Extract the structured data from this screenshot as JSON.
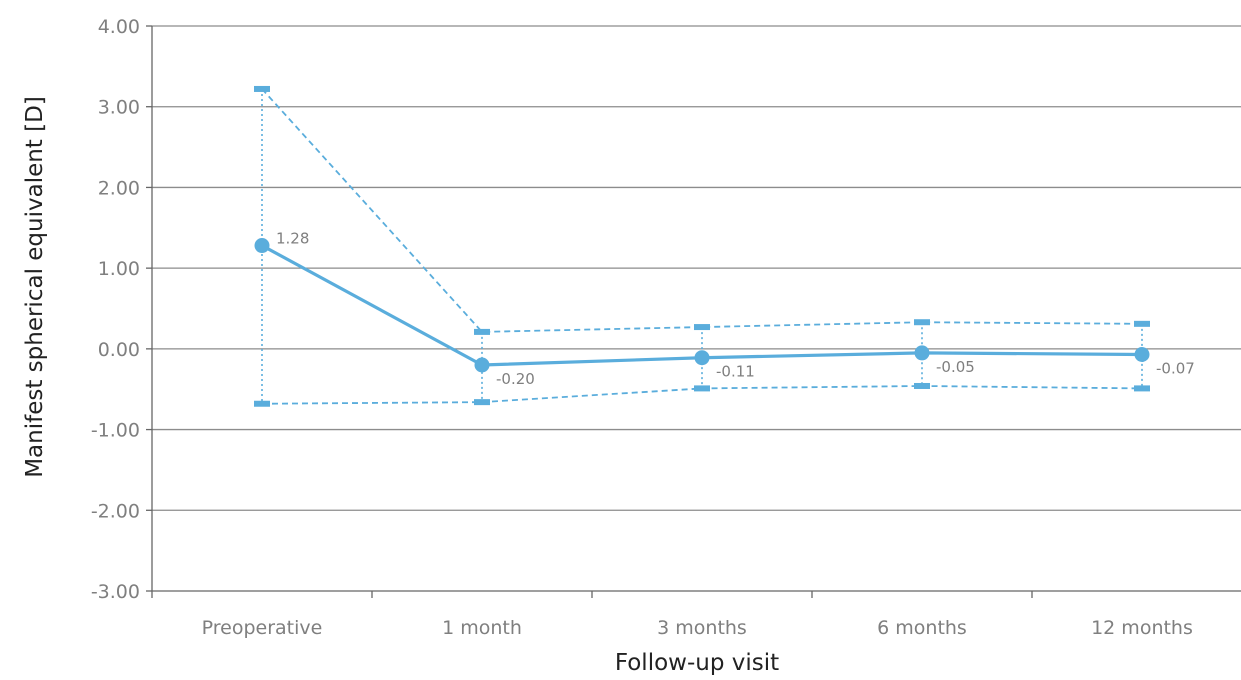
{
  "chart_data": {
    "type": "line",
    "title": "",
    "xlabel": "Follow-up visit",
    "ylabel": "Manifest spherical equivalent [D]",
    "categories": [
      "Preoperative",
      "1 month",
      "3 months",
      "6 months",
      "12 months"
    ],
    "ylim": [
      -3,
      4
    ],
    "yticks": [
      "4.00",
      "3.00",
      "2.00",
      "1.00",
      "0.00",
      "-1.00",
      "-2.00",
      "-3.00"
    ],
    "grid": true,
    "legend": "none",
    "series": [
      {
        "values": [
          1.28,
          -0.2,
          -0.11,
          -0.05,
          -0.07
        ],
        "labels": [
          "1.28",
          "-0.20",
          "-0.11",
          "-0.05",
          "-0.07"
        ],
        "upper": [
          3.22,
          0.21,
          0.27,
          0.33,
          0.31
        ],
        "lower": [
          -0.68,
          -0.66,
          -0.49,
          -0.46,
          -0.49
        ]
      }
    ],
    "colors": {
      "series": "#5aaddc",
      "grid": "#8c8c8c",
      "tick_text": "#7f7f7f",
      "axis_title": "#222222"
    }
  }
}
